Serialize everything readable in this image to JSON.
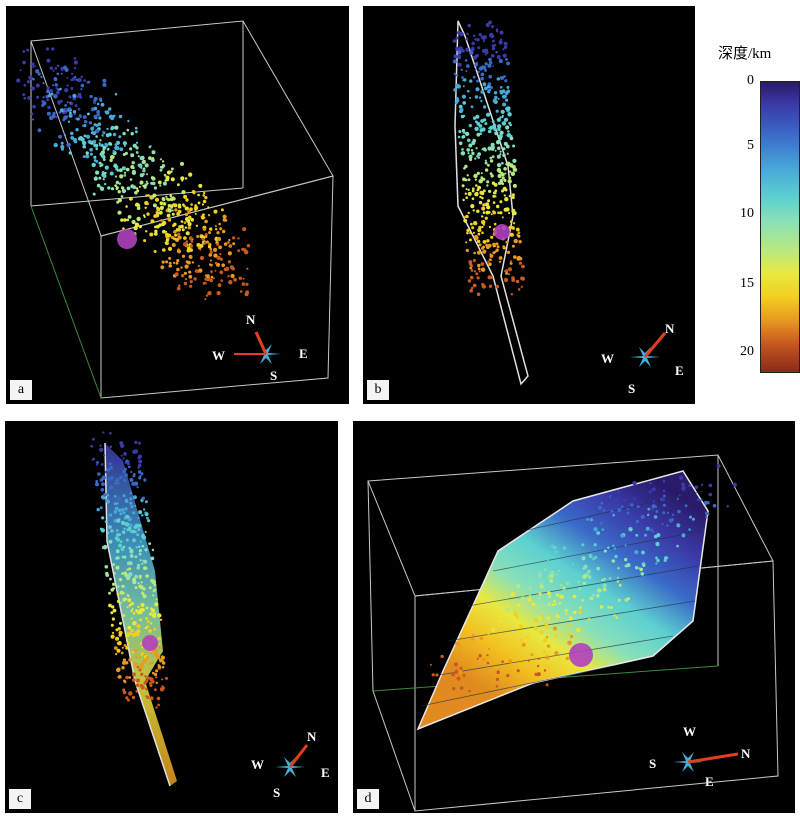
{
  "colorbar": {
    "title": "深度/km",
    "ticks": [
      "0",
      "5",
      "10",
      "15",
      "20"
    ],
    "colors": [
      "#2a1a6a",
      "#3a6ac8",
      "#5cd0d0",
      "#e8e840",
      "#e89a20",
      "#8a2a18"
    ]
  },
  "panels": [
    {
      "id": "a",
      "label": "a",
      "compass": {
        "n": "N",
        "e": "E",
        "s": "S",
        "w": "W"
      }
    },
    {
      "id": "b",
      "label": "b",
      "compass": {
        "n": "N",
        "e": "E",
        "s": "S",
        "w": "W"
      }
    },
    {
      "id": "c",
      "label": "c",
      "compass": {
        "n": "N",
        "e": "E",
        "s": "S",
        "w": "W"
      }
    },
    {
      "id": "d",
      "label": "d",
      "compass": {
        "n": "N",
        "e": "E",
        "s": "S",
        "w": "W"
      }
    }
  ],
  "colors": {
    "frame": "#c8c8c8",
    "hypocenter": "#b040c0",
    "compass_star": "#40b0d8",
    "compass_arrow": "#e04020"
  }
}
